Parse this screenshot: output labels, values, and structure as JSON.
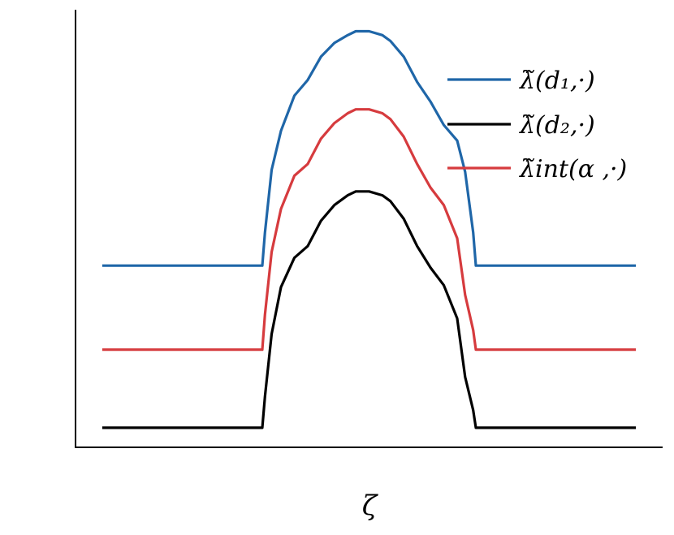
{
  "chart_data": {
    "type": "line",
    "title": "",
    "xlabel": "ζ",
    "ylabel": "",
    "grid": false,
    "legend_placement": "top-right",
    "xlim": [
      -0.05,
      1.05
    ],
    "ylim": [
      -0.05,
      1.07
    ],
    "x": [
      0,
      0.3,
      0.305,
      0.3175,
      0.335,
      0.36,
      0.385,
      0.41,
      0.435,
      0.46,
      0.475,
      0.5,
      0.525,
      0.54,
      0.565,
      0.59,
      0.615,
      0.64,
      0.665,
      0.68,
      0.695,
      0.7,
      1
    ],
    "series": [
      {
        "name": "λ̃(d₁,·)",
        "color": "#1f66a8",
        "values": [
          0.415,
          0.415,
          0.5,
          0.66,
          0.76,
          0.85,
          0.89,
          0.95,
          0.985,
          1.005,
          1.015,
          1.015,
          1.005,
          0.99,
          0.95,
          0.885,
          0.835,
          0.775,
          0.735,
          0.655,
          0.5,
          0.415,
          0.415
        ]
      },
      {
        "name": "λ̃(d₂,·)",
        "color": "#000000",
        "values": [
          0,
          0,
          0.08,
          0.24,
          0.36,
          0.435,
          0.465,
          0.53,
          0.57,
          0.595,
          0.605,
          0.605,
          0.595,
          0.58,
          0.535,
          0.465,
          0.41,
          0.365,
          0.28,
          0.13,
          0.045,
          0,
          0
        ]
      },
      {
        "name": "λ̃int(α ,·)",
        "color": "#d63b3e",
        "values": [
          0.2,
          0.2,
          0.29,
          0.45,
          0.56,
          0.645,
          0.675,
          0.74,
          0.78,
          0.805,
          0.815,
          0.815,
          0.805,
          0.79,
          0.745,
          0.675,
          0.615,
          0.57,
          0.485,
          0.34,
          0.25,
          0.2,
          0.2
        ]
      }
    ]
  }
}
